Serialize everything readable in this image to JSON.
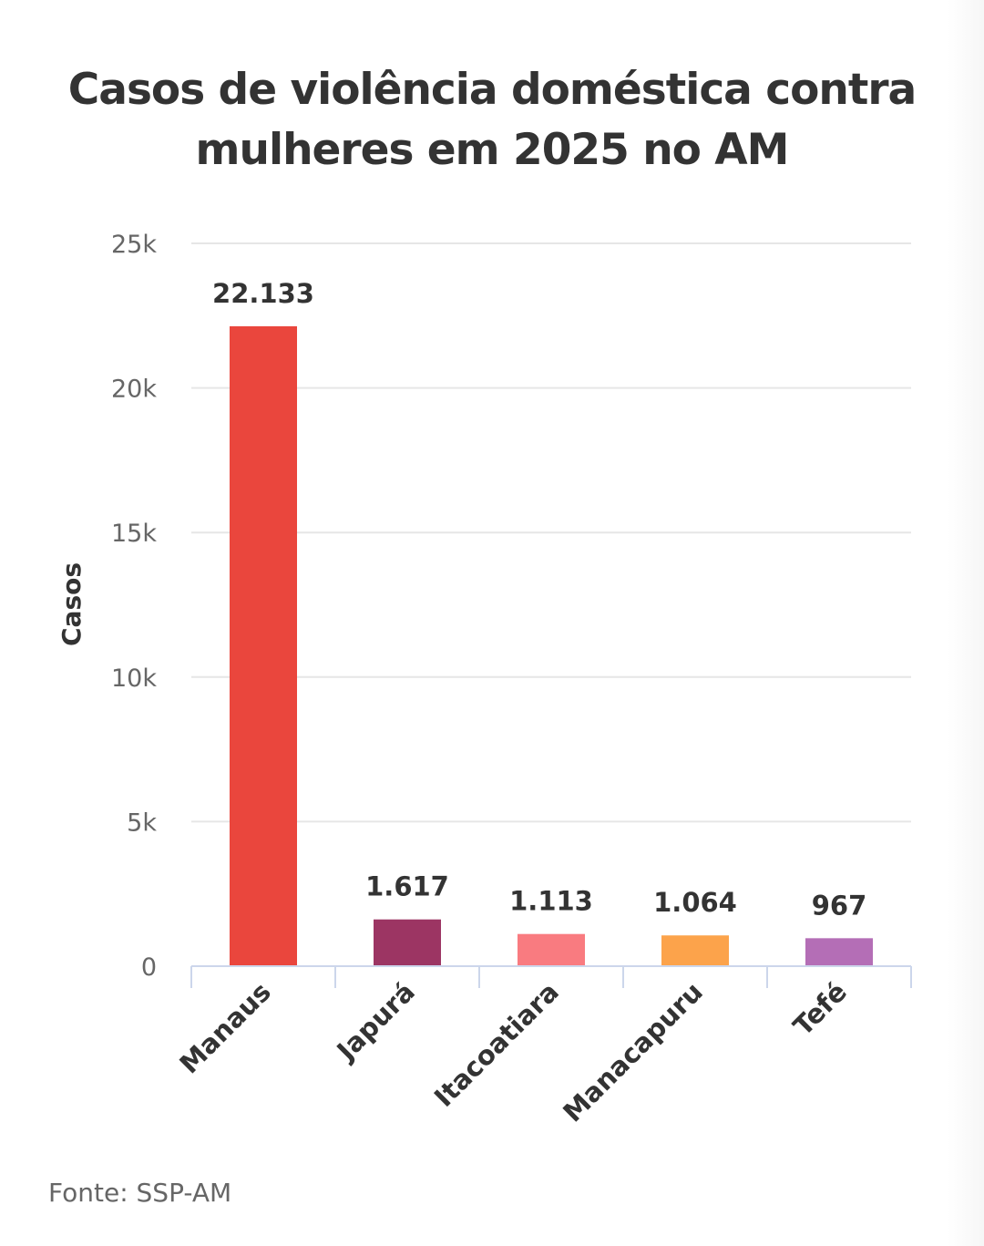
{
  "title_line1": "Casos de violência doméstica contra",
  "title_line2": "mulheres em 2025 no AM",
  "source": "Fonte: SSP-AM",
  "chart_data": {
    "type": "bar",
    "title": "Casos de violência doméstica contra mulheres em 2025 no AM",
    "xlabel": "",
    "ylabel": "Casos",
    "ylim": [
      0,
      25000
    ],
    "yticks": [
      0,
      5000,
      10000,
      15000,
      20000,
      25000
    ],
    "ytick_labels": [
      "0",
      "5k",
      "10k",
      "15k",
      "20k",
      "25k"
    ],
    "grid": true,
    "categories": [
      "Manaus",
      "Japurá",
      "Itacoatiara",
      "Manacapuru",
      "Tefé"
    ],
    "values": [
      22133,
      1617,
      1113,
      1064,
      967
    ],
    "data_labels": [
      "22.133",
      "1.617",
      "1.113",
      "1.064",
      "967"
    ],
    "colors": [
      "#ea463d",
      "#9c3563",
      "#f97b80",
      "#fca34b",
      "#b46eb6"
    ]
  }
}
